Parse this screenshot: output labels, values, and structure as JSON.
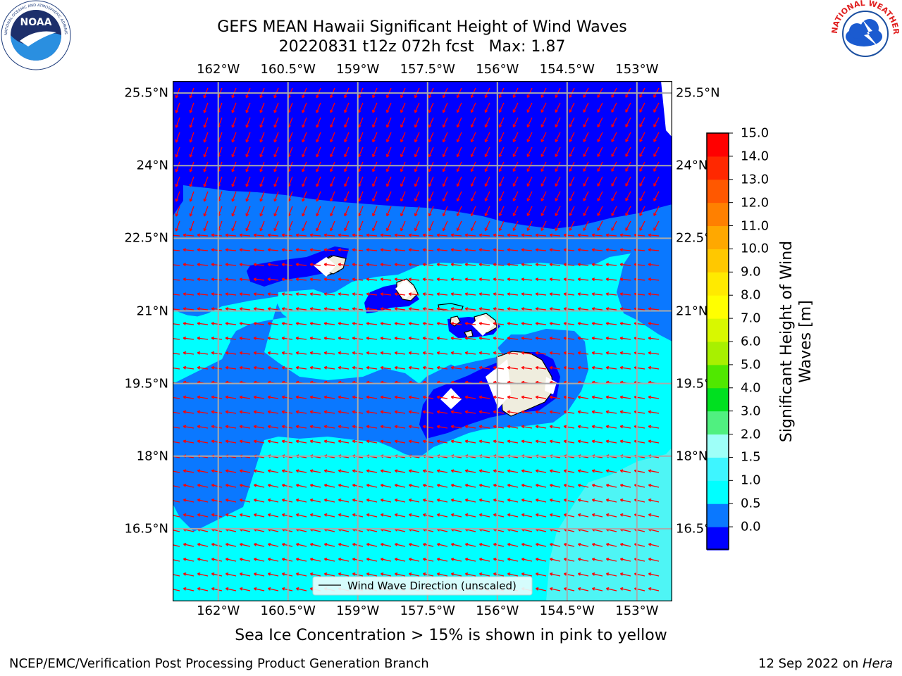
{
  "header": {
    "title": "GEFS MEAN Hawaii Significant Height of Wind Waves",
    "subtitle": "20220831 t12z 072h fcst   Max: 1.87"
  },
  "logos": {
    "left": {
      "icon": "noaa-logo",
      "ring_text": "NATIONAL OCEANIC AND ATMOSPHERIC ADMINISTRATION · U.S. DEPARTMENT OF COMMERCE",
      "center_text": "NOAA"
    },
    "right": {
      "icon": "nws-logo",
      "ring_text": "NATIONAL WEATHER SERVICE"
    }
  },
  "map": {
    "lon_ticks": [
      "162°W",
      "160.5°W",
      "159°W",
      "157.5°W",
      "156°W",
      "154.5°W",
      "153°W"
    ],
    "lat_ticks": [
      "25.5°N",
      "24°N",
      "22.5°N",
      "21°N",
      "19.5°N",
      "18°N",
      "16.5°N"
    ],
    "lon_values": [
      -162,
      -160.5,
      -159,
      -157.5,
      -156,
      -154.5,
      -153
    ],
    "lat_values": [
      25.5,
      24,
      22.5,
      21,
      19.5,
      18,
      16.5
    ],
    "lon_range": [
      -162.98,
      -152.24
    ],
    "lat_range": [
      15.0,
      25.75
    ],
    "legend_label": "Wind Wave Direction (unscaled)",
    "arrow_color": "#ff0000",
    "grid": true,
    "land_color": "#efedde"
  },
  "colorbar": {
    "label": "Significant Height of Wind Waves [m]",
    "levels": [
      "0.0",
      "0.5",
      "1.0",
      "1.5",
      "2.0",
      "3.0",
      "4.0",
      "5.0",
      "6.0",
      "7.0",
      "8.0",
      "9.0",
      "10.0",
      "11.0",
      "12.0",
      "13.0",
      "14.0",
      "15.0"
    ],
    "colors": [
      "#0000ff",
      "#0a78ff",
      "#00ffff",
      "#3ef5ff",
      "#9efff8",
      "#50f080",
      "#00e020",
      "#50e800",
      "#a8f000",
      "#d8f800",
      "#ffff00",
      "#ffea00",
      "#ffc800",
      "#ffa800",
      "#ff8000",
      "#ff5800",
      "#ff2800",
      "#ff0000"
    ]
  },
  "footer": {
    "note": "Sea Ice Concentration > 15% is shown in pink to yellow",
    "credit_left": "NCEP/EMC/Verification Post Processing Product Generation Branch",
    "credit_date": "12 Sep 2022 on ",
    "credit_machine": "Hera"
  }
}
